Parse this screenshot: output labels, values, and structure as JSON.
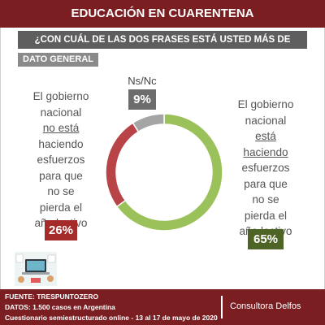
{
  "title": "EDUCACIÓN EN CUARENTENA",
  "question": "¿CON CUÁL DE LAS DOS FRASES ESTÁ USTED MÁS DE ACUERDO?",
  "tag": "DATO GENERAL",
  "colors": {
    "header": "#7a1e22",
    "question_bar": "#5e5e5e",
    "esta": "#9bc15b",
    "no_esta": "#b84447",
    "nsnc": "#a5a5a5"
  },
  "chart_data": {
    "type": "pie",
    "donut": true,
    "categories": [
      "El gobierno nacional está haciendo esfuerzos para que no se pierda el año lectivo",
      "El gobierno nacional no está haciendo esfuerzos para que no se pierda el año lectivo",
      "Ns/Nc"
    ],
    "values": [
      65,
      26,
      9
    ],
    "value_labels": [
      "65%",
      "26%",
      "9%"
    ]
  },
  "labels": {
    "nsnc": "Ns/Nc",
    "left_phrase": [
      "El gobierno",
      "nacional",
      "no está",
      "haciendo",
      "esfuerzos",
      "para que",
      "no se",
      "pierda el",
      "año lectivo"
    ],
    "right_phrase": [
      "El gobierno",
      "nacional",
      "está",
      "haciendo",
      "esfuerzos",
      "para que",
      "no se",
      "pierda el",
      "año lectivo"
    ]
  },
  "footer": {
    "fuente": "FUENTE: TRESPUNTOZERO",
    "datos": "DATOS: 1.500 casos en Argentina",
    "cuestionario": "Cuestionario semiestructurado online - 13 al 17 de mayo de 2020",
    "brand": "Consultora Delfos"
  }
}
